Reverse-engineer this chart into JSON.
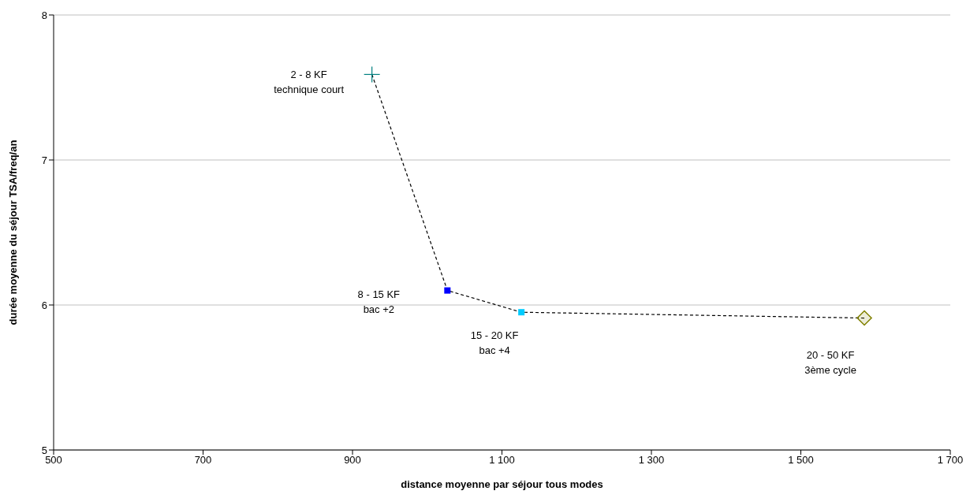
{
  "chart_data": {
    "type": "scatter",
    "xlabel": "distance moyenne par séjour tous modes",
    "ylabel": "durée moyenne du séjour TSA/freq/an",
    "xlim": [
      500,
      1700
    ],
    "xticks": [
      {
        "value": 500,
        "label": "500"
      },
      {
        "value": 700,
        "label": "700"
      },
      {
        "value": 900,
        "label": "900"
      },
      {
        "value": 1100,
        "label": "1 100"
      },
      {
        "value": 1300,
        "label": "1 300"
      },
      {
        "value": 1500,
        "label": "1 500"
      },
      {
        "value": 1700,
        "label": "1 700"
      }
    ],
    "ylim": [
      5,
      8
    ],
    "yticks": [
      5,
      6,
      7,
      8
    ],
    "grid": "y",
    "series": [
      {
        "type": "line",
        "color": "#000000",
        "line_style": "dashed",
        "marker": "none",
        "x": [
          926,
          1027,
          1126,
          1585
        ],
        "values": [
          7.59,
          6.1,
          5.95,
          5.91
        ]
      },
      {
        "color": "#008080",
        "marker": "cross",
        "x": [
          926
        ],
        "values": [
          7.59
        ]
      },
      {
        "color": "#0000ff",
        "marker": "square",
        "x": [
          1027
        ],
        "values": [
          6.1
        ]
      },
      {
        "color": "#00ccff",
        "marker": "square",
        "x": [
          1126
        ],
        "values": [
          5.95
        ]
      },
      {
        "color": "#808000",
        "marker": "diamond",
        "x": [
          1585
        ],
        "values": [
          5.91
        ]
      }
    ],
    "annotations": [
      {
        "text": "2 - 8 KF\ntechnique court",
        "x": 926,
        "y": 7.59
      },
      "8 - 15 KF\nbac +2",
      {
        "text": "15 - 20 KF\nbac +4",
        "x": 1126,
        "y": 5.95
      },
      "20 - 50 KF\n3ème cycle"
    ]
  }
}
